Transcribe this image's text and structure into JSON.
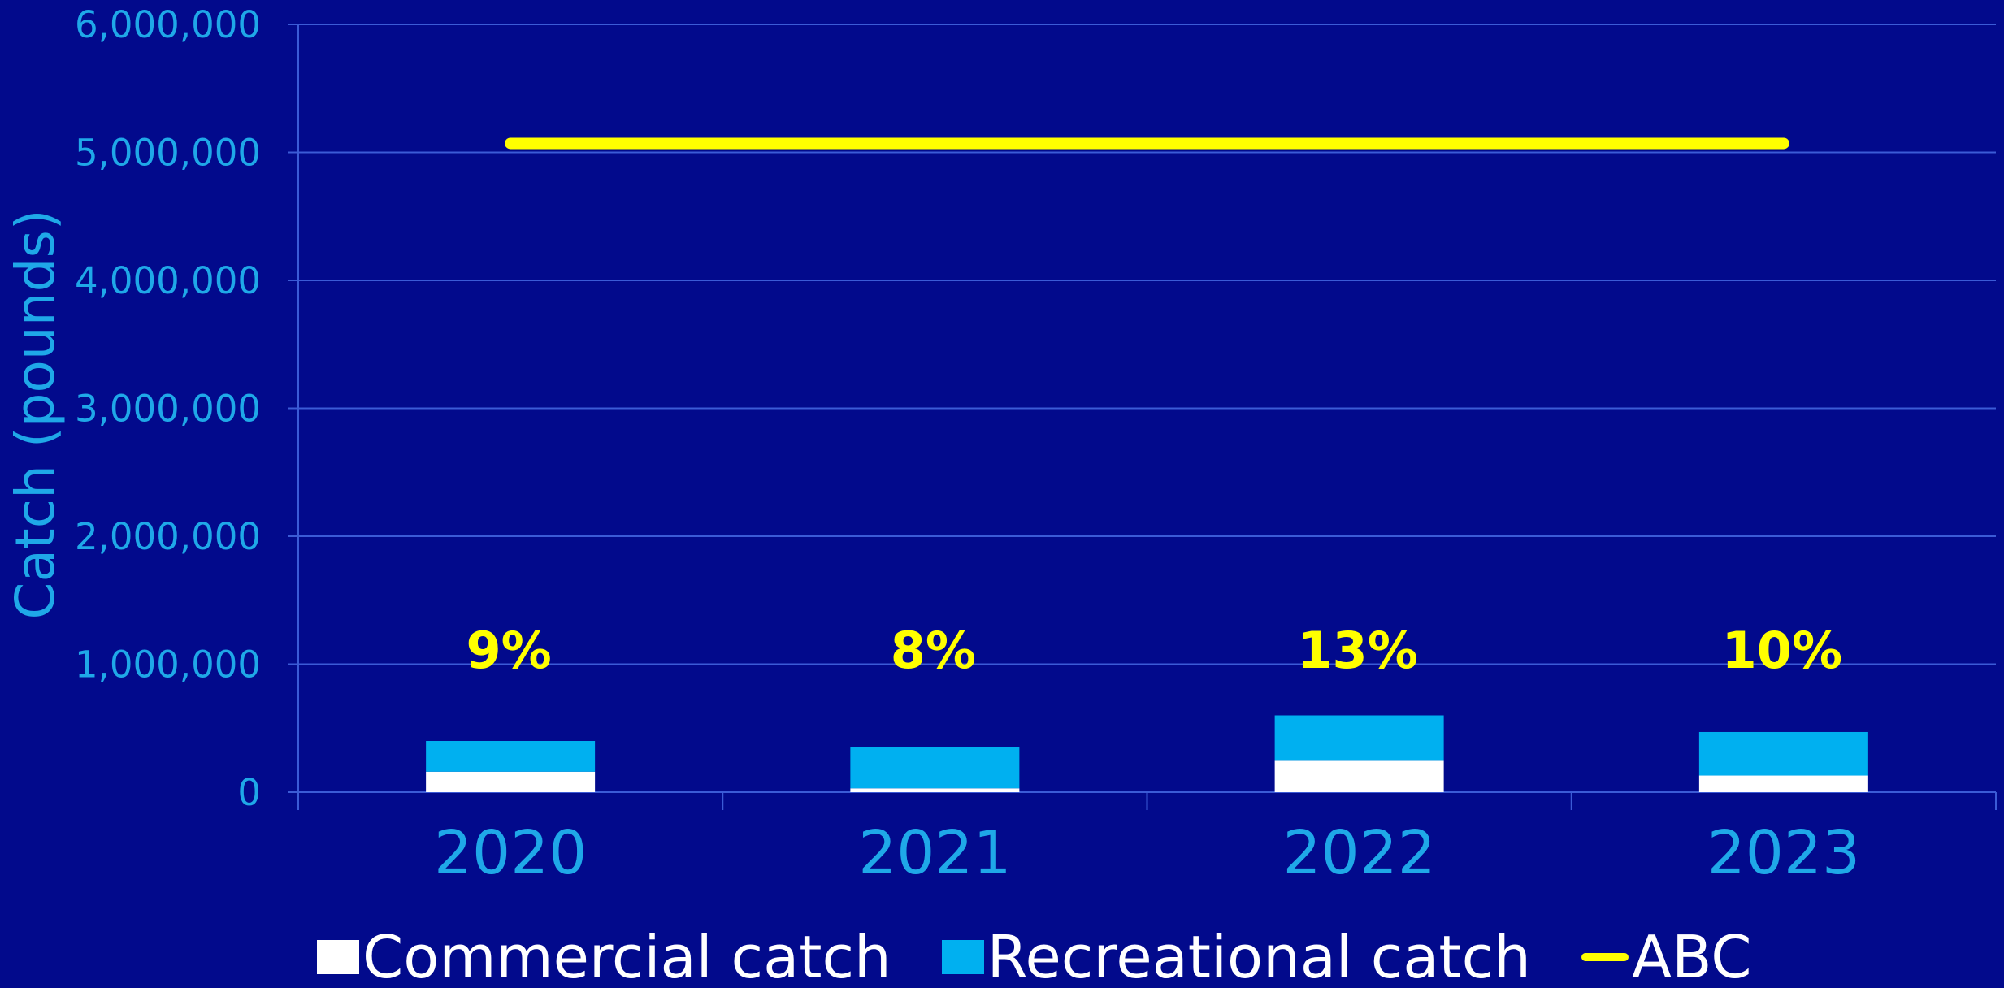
{
  "chart_data": {
    "type": "bar",
    "stacked": true,
    "ylabel": "Catch (pounds)",
    "xlabel": "",
    "ylim": [
      0,
      6000000
    ],
    "yticks": [
      0,
      1000000,
      2000000,
      3000000,
      4000000,
      5000000,
      6000000
    ],
    "ytick_labels": [
      "0",
      "1,000,000",
      "2,000,000",
      "3,000,000",
      "4,000,000",
      "5,000,000",
      "6,000,000"
    ],
    "grid": true,
    "legend_position": "bottom",
    "categories": [
      "2020",
      "2021",
      "2022",
      "2023"
    ],
    "series": [
      {
        "name": "Commercial catch",
        "kind": "bar",
        "color": "#FFFFFF",
        "values": [
          160000,
          30000,
          245000,
          130000
        ]
      },
      {
        "name": "Recreational catch",
        "kind": "bar",
        "color": "#00B0F0",
        "values": [
          240000,
          320000,
          355000,
          340000
        ]
      },
      {
        "name": "ABC",
        "kind": "line",
        "color": "#FFFF00",
        "values": [
          5070000,
          5070000,
          5070000,
          5070000
        ]
      }
    ],
    "annotations": [
      "9%",
      "8%",
      "13%",
      "10%"
    ]
  },
  "colors": {
    "background": "#020A8C",
    "axis_text": "#1FA8E8",
    "gridline": "#3B5BD6",
    "annotation": "#FFFF00"
  }
}
